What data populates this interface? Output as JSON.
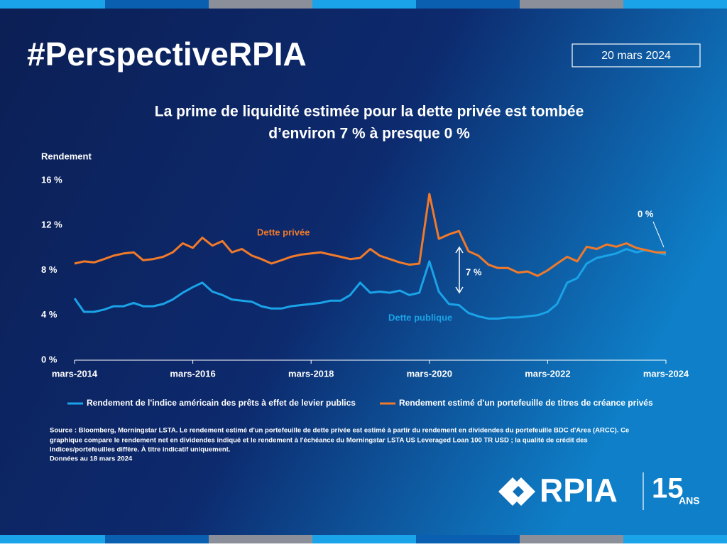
{
  "header": {
    "hashtag": "#PerspectiveRPIA",
    "date": "20 mars 2024"
  },
  "chart_data": {
    "type": "line",
    "title": [
      "La prime de liquidité estimée pour la dette privée est tombée",
      "d’environ 7 % à presque 0 %"
    ],
    "y_label": "Rendement",
    "x": [
      2014.17,
      2014.33,
      2014.5,
      2014.67,
      2014.83,
      2015,
      2015.17,
      2015.33,
      2015.5,
      2015.67,
      2015.83,
      2016,
      2016.17,
      2016.33,
      2016.5,
      2016.67,
      2016.83,
      2017,
      2017.17,
      2017.33,
      2017.5,
      2017.67,
      2017.83,
      2018,
      2018.17,
      2018.33,
      2018.5,
      2018.67,
      2018.83,
      2019,
      2019.17,
      2019.33,
      2019.5,
      2019.67,
      2019.83,
      2020,
      2020.17,
      2020.33,
      2020.5,
      2020.67,
      2020.83,
      2021,
      2021.17,
      2021.33,
      2021.5,
      2021.67,
      2021.83,
      2022,
      2022.17,
      2022.33,
      2022.5,
      2022.67,
      2022.83,
      2023,
      2023.17,
      2023.33,
      2023.5,
      2023.67,
      2023.83,
      2024,
      2024.17
    ],
    "xlim": [
      2014.17,
      2024.17
    ],
    "xticks": [
      {
        "value": 2014.17,
        "label": "mars-2014"
      },
      {
        "value": 2016.17,
        "label": "mars-2016"
      },
      {
        "value": 2018.17,
        "label": "mars-2018"
      },
      {
        "value": 2020.17,
        "label": "mars-2020"
      },
      {
        "value": 2022.17,
        "label": "mars-2022"
      },
      {
        "value": 2024.17,
        "label": "mars-2024"
      }
    ],
    "ylim": [
      0,
      16
    ],
    "yticks": [
      {
        "value": 0,
        "label": "0 %"
      },
      {
        "value": 4,
        "label": "4 %"
      },
      {
        "value": 8,
        "label": "8 %"
      },
      {
        "value": 12,
        "label": "12 %"
      },
      {
        "value": 16,
        "label": "16 %"
      }
    ],
    "series": [
      {
        "name": "Rendement de l'indice américain des prêts à effet de levier publics",
        "color": "#1aa3e8",
        "values": [
          5.5,
          4.3,
          4.3,
          4.5,
          4.8,
          4.8,
          5.1,
          4.8,
          4.8,
          5.0,
          5.4,
          6.0,
          6.5,
          6.9,
          6.1,
          5.8,
          5.4,
          5.3,
          5.2,
          4.8,
          4.6,
          4.6,
          4.8,
          4.9,
          5.0,
          5.1,
          5.3,
          5.3,
          5.8,
          6.9,
          6.0,
          6.1,
          6.0,
          6.2,
          5.8,
          6.0,
          8.8,
          6.1,
          5.0,
          4.9,
          4.2,
          3.9,
          3.7,
          3.7,
          3.8,
          3.8,
          3.9,
          4.0,
          4.3,
          5.0,
          6.9,
          7.3,
          8.6,
          9.1,
          9.3,
          9.5,
          9.9,
          9.6,
          9.8,
          9.6,
          9.4
        ]
      },
      {
        "name": "Rendement estimé d'un portefeuille de titres de créance privés",
        "color": "#f07a2a",
        "values": [
          8.6,
          8.8,
          8.7,
          9.0,
          9.3,
          9.5,
          9.6,
          8.9,
          9.0,
          9.2,
          9.6,
          10.4,
          10.0,
          10.9,
          10.2,
          10.6,
          9.6,
          9.9,
          9.3,
          9.0,
          8.6,
          8.9,
          9.2,
          9.4,
          9.5,
          9.6,
          9.4,
          9.2,
          9.0,
          9.1,
          9.9,
          9.3,
          9.0,
          8.7,
          8.5,
          8.6,
          14.8,
          10.8,
          11.2,
          11.5,
          9.7,
          9.3,
          8.5,
          8.2,
          8.2,
          7.8,
          7.9,
          7.5,
          8.0,
          8.6,
          9.2,
          8.8,
          10.1,
          9.9,
          10.3,
          10.1,
          10.4,
          10.0,
          9.8,
          9.6,
          9.6
        ]
      }
    ],
    "annotations": {
      "private": "Dette privée",
      "public": "Dette publique",
      "gap": "7 %",
      "end_gap": "0 %"
    }
  },
  "footer": {
    "source": [
      "Source : Bloomberg, Morningstar LSTA. Le rendement estimé d'un portefeuille de dette privée est estimé à partir du rendement en dividendes du portefeuille BDC d'Ares (ARCC). Ce",
      "graphique compare le rendement net en dividendes indiqué et le rendement à l'échéance du Morningstar LSTA US Leveraged Loan 100 TR USD ; la qualité de crédit des",
      "indices/portefeuilles diffère. À titre indicatif uniquement.",
      "Données au 18 mars 2024"
    ],
    "logo": "RPIA",
    "anniversary": "15",
    "anniversary_unit": "ANS"
  }
}
